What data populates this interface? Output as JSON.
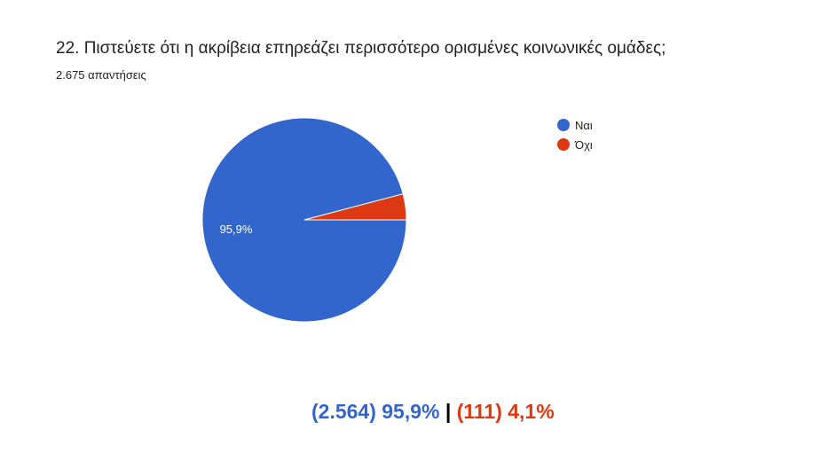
{
  "header": {
    "title": "22. Πιστεύετε ότι η ακρίβεια επηρεάζει περισσότερο ορισμένες κοινωνικές ομάδες;",
    "responses": "2.675 απαντήσεις"
  },
  "chart_data": {
    "type": "pie",
    "categories": [
      "Ναι",
      "Όχι"
    ],
    "values": [
      95.9,
      4.1
    ],
    "colors": [
      "#3366cc",
      "#dc3912"
    ],
    "data_labels": [
      "95,9%",
      ""
    ],
    "legend_position": "right"
  },
  "summary": {
    "yes": "(2.564) 95,9%",
    "sep": "|",
    "no": "(111) 4,1%",
    "yes_color": "#3366cc",
    "no_color": "#dc3912"
  }
}
